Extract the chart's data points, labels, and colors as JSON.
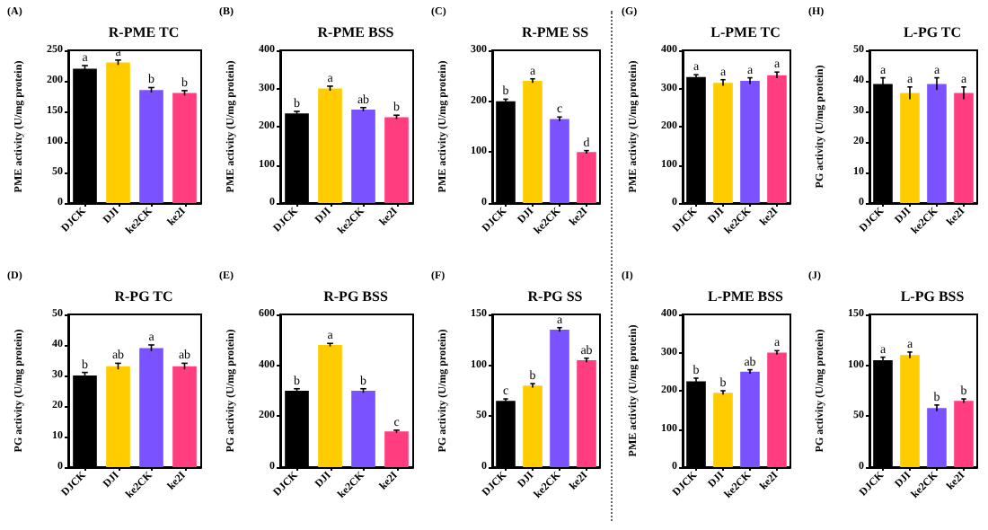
{
  "chart_data": [
    {
      "type": "bar",
      "title": "R-PME TC",
      "ylabel": "PME activity (U/mg protein)",
      "annotations": [
        "(A)"
      ],
      "categories": [
        "DJCK",
        "DJI",
        "ke2CK",
        "ke2I"
      ],
      "values": [
        220,
        230,
        185,
        180
      ],
      "errors": [
        5,
        4,
        4,
        4
      ],
      "value_labels": [
        "a",
        "a",
        "b",
        "b"
      ],
      "colors": [
        "#000000",
        "#ffcc00",
        "#7b52ff",
        "#ff3d7f"
      ],
      "ylim": [
        0,
        250
      ],
      "yticks": [
        0,
        50,
        100,
        150,
        200,
        250
      ]
    },
    {
      "type": "bar",
      "title": "R-PME BSS",
      "ylabel": "PME activity (U/mg protein)",
      "annotations": [
        "(B)"
      ],
      "categories": [
        "DJCK",
        "DJI",
        "ke2CK",
        "ke2I"
      ],
      "values": [
        235,
        300,
        245,
        225
      ],
      "errors": [
        5,
        6,
        5,
        5
      ],
      "value_labels": [
        "b",
        "a",
        "ab",
        "b"
      ],
      "colors": [
        "#000000",
        "#ffcc00",
        "#7b52ff",
        "#ff3d7f"
      ],
      "ylim": [
        0,
        400
      ],
      "yticks": [
        0,
        100,
        200,
        300,
        400
      ]
    },
    {
      "type": "bar",
      "title": "R-PME SS",
      "ylabel": "PME activity (U/mg protein)",
      "annotations": [
        "(C)"
      ],
      "categories": [
        "DJCK",
        "DJI",
        "ke2CK",
        "ke2I"
      ],
      "values": [
        200,
        240,
        165,
        100
      ],
      "errors": [
        4,
        4,
        4,
        3
      ],
      "value_labels": [
        "b",
        "a",
        "c",
        "d"
      ],
      "colors": [
        "#000000",
        "#ffcc00",
        "#7b52ff",
        "#ff3d7f"
      ],
      "ylim": [
        0,
        300
      ],
      "yticks": [
        0,
        100,
        200,
        300
      ]
    },
    {
      "type": "bar",
      "title": "L-PME TC",
      "ylabel": "PME activity (U/mg protein)",
      "annotations": [
        "(G)"
      ],
      "categories": [
        "DJCK",
        "DJI",
        "ke2CK",
        "ke2I"
      ],
      "values": [
        330,
        315,
        320,
        335
      ],
      "errors": [
        6,
        8,
        8,
        8
      ],
      "value_labels": [
        "a",
        "a",
        "a",
        "a"
      ],
      "colors": [
        "#000000",
        "#ffcc00",
        "#7b52ff",
        "#ff3d7f"
      ],
      "ylim": [
        0,
        400
      ],
      "yticks": [
        0,
        100,
        200,
        300,
        400
      ]
    },
    {
      "type": "bar",
      "title": "L-PG TC",
      "ylabel": "PG activity (U/mg protein)",
      "annotations": [
        "(H)"
      ],
      "categories": [
        "DJCK",
        "DJI",
        "ke2CK",
        "ke2I"
      ],
      "values": [
        39,
        36,
        39,
        36
      ],
      "errors": [
        2,
        2,
        2,
        2
      ],
      "value_labels": [
        "a",
        "a",
        "a",
        "a"
      ],
      "colors": [
        "#000000",
        "#ffcc00",
        "#7b52ff",
        "#ff3d7f"
      ],
      "ylim": [
        0,
        50
      ],
      "yticks": [
        0,
        10,
        20,
        30,
        40,
        50
      ]
    },
    {
      "type": "bar",
      "title": "R-PG TC",
      "ylabel": "PG activity (U/mg protein)",
      "annotations": [
        "(D)"
      ],
      "categories": [
        "DJCK",
        "DJI",
        "ke2CK",
        "ke2I"
      ],
      "values": [
        30,
        33,
        39,
        33
      ],
      "errors": [
        1,
        1,
        1,
        1
      ],
      "value_labels": [
        "b",
        "ab",
        "a",
        "ab"
      ],
      "colors": [
        "#000000",
        "#ffcc00",
        "#7b52ff",
        "#ff3d7f"
      ],
      "ylim": [
        0,
        50
      ],
      "yticks": [
        0,
        10,
        20,
        30,
        40,
        50
      ]
    },
    {
      "type": "bar",
      "title": "R-PG BSS",
      "ylabel": "PG activity (U/mg protein)",
      "annotations": [
        "(E)"
      ],
      "categories": [
        "DJCK",
        "DJI",
        "ke2CK",
        "ke2I"
      ],
      "values": [
        300,
        480,
        300,
        140
      ],
      "errors": [
        8,
        6,
        8,
        5
      ],
      "value_labels": [
        "b",
        "a",
        "b",
        "c"
      ],
      "colors": [
        "#000000",
        "#ffcc00",
        "#7b52ff",
        "#ff3d7f"
      ],
      "ylim": [
        0,
        600
      ],
      "yticks": [
        0,
        200,
        400,
        600
      ]
    },
    {
      "type": "bar",
      "title": "R-PG SS",
      "ylabel": "PG activity (U/mg protein)",
      "annotations": [
        "(F)"
      ],
      "categories": [
        "DJCK",
        "DJI",
        "ke2CK",
        "ke2I"
      ],
      "values": [
        65,
        80,
        135,
        105
      ],
      "errors": [
        2,
        2,
        2,
        2
      ],
      "value_labels": [
        "c",
        "b",
        "a",
        "ab"
      ],
      "colors": [
        "#000000",
        "#ffcc00",
        "#7b52ff",
        "#ff3d7f"
      ],
      "ylim": [
        0,
        150
      ],
      "yticks": [
        0,
        50,
        100,
        150
      ]
    },
    {
      "type": "bar",
      "title": "L-PME BSS",
      "ylabel": "PME activity (U/mg protein)",
      "annotations": [
        "(I)"
      ],
      "categories": [
        "DJCK",
        "DJI",
        "ke2CK",
        "ke2I"
      ],
      "values": [
        225,
        195,
        250,
        300
      ],
      "errors": [
        8,
        5,
        5,
        5
      ],
      "value_labels": [
        "b",
        "b",
        "ab",
        "a"
      ],
      "colors": [
        "#000000",
        "#ffcc00",
        "#7b52ff",
        "#ff3d7f"
      ],
      "ylim": [
        0,
        400
      ],
      "yticks": [
        0,
        100,
        200,
        300,
        400
      ]
    },
    {
      "type": "bar",
      "title": "L-PG BSS",
      "ylabel": "PG activity (U/mg protein)",
      "annotations": [
        "(J)"
      ],
      "categories": [
        "DJCK",
        "DJI",
        "ke2CK",
        "ke2I"
      ],
      "values": [
        105,
        110,
        58,
        65
      ],
      "errors": [
        3,
        3,
        3,
        2
      ],
      "value_labels": [
        "a",
        "a",
        "b",
        "b"
      ],
      "colors": [
        "#000000",
        "#ffcc00",
        "#7b52ff",
        "#ff3d7f"
      ],
      "ylim": [
        0,
        150
      ],
      "yticks": [
        0,
        50,
        100,
        150
      ]
    }
  ]
}
